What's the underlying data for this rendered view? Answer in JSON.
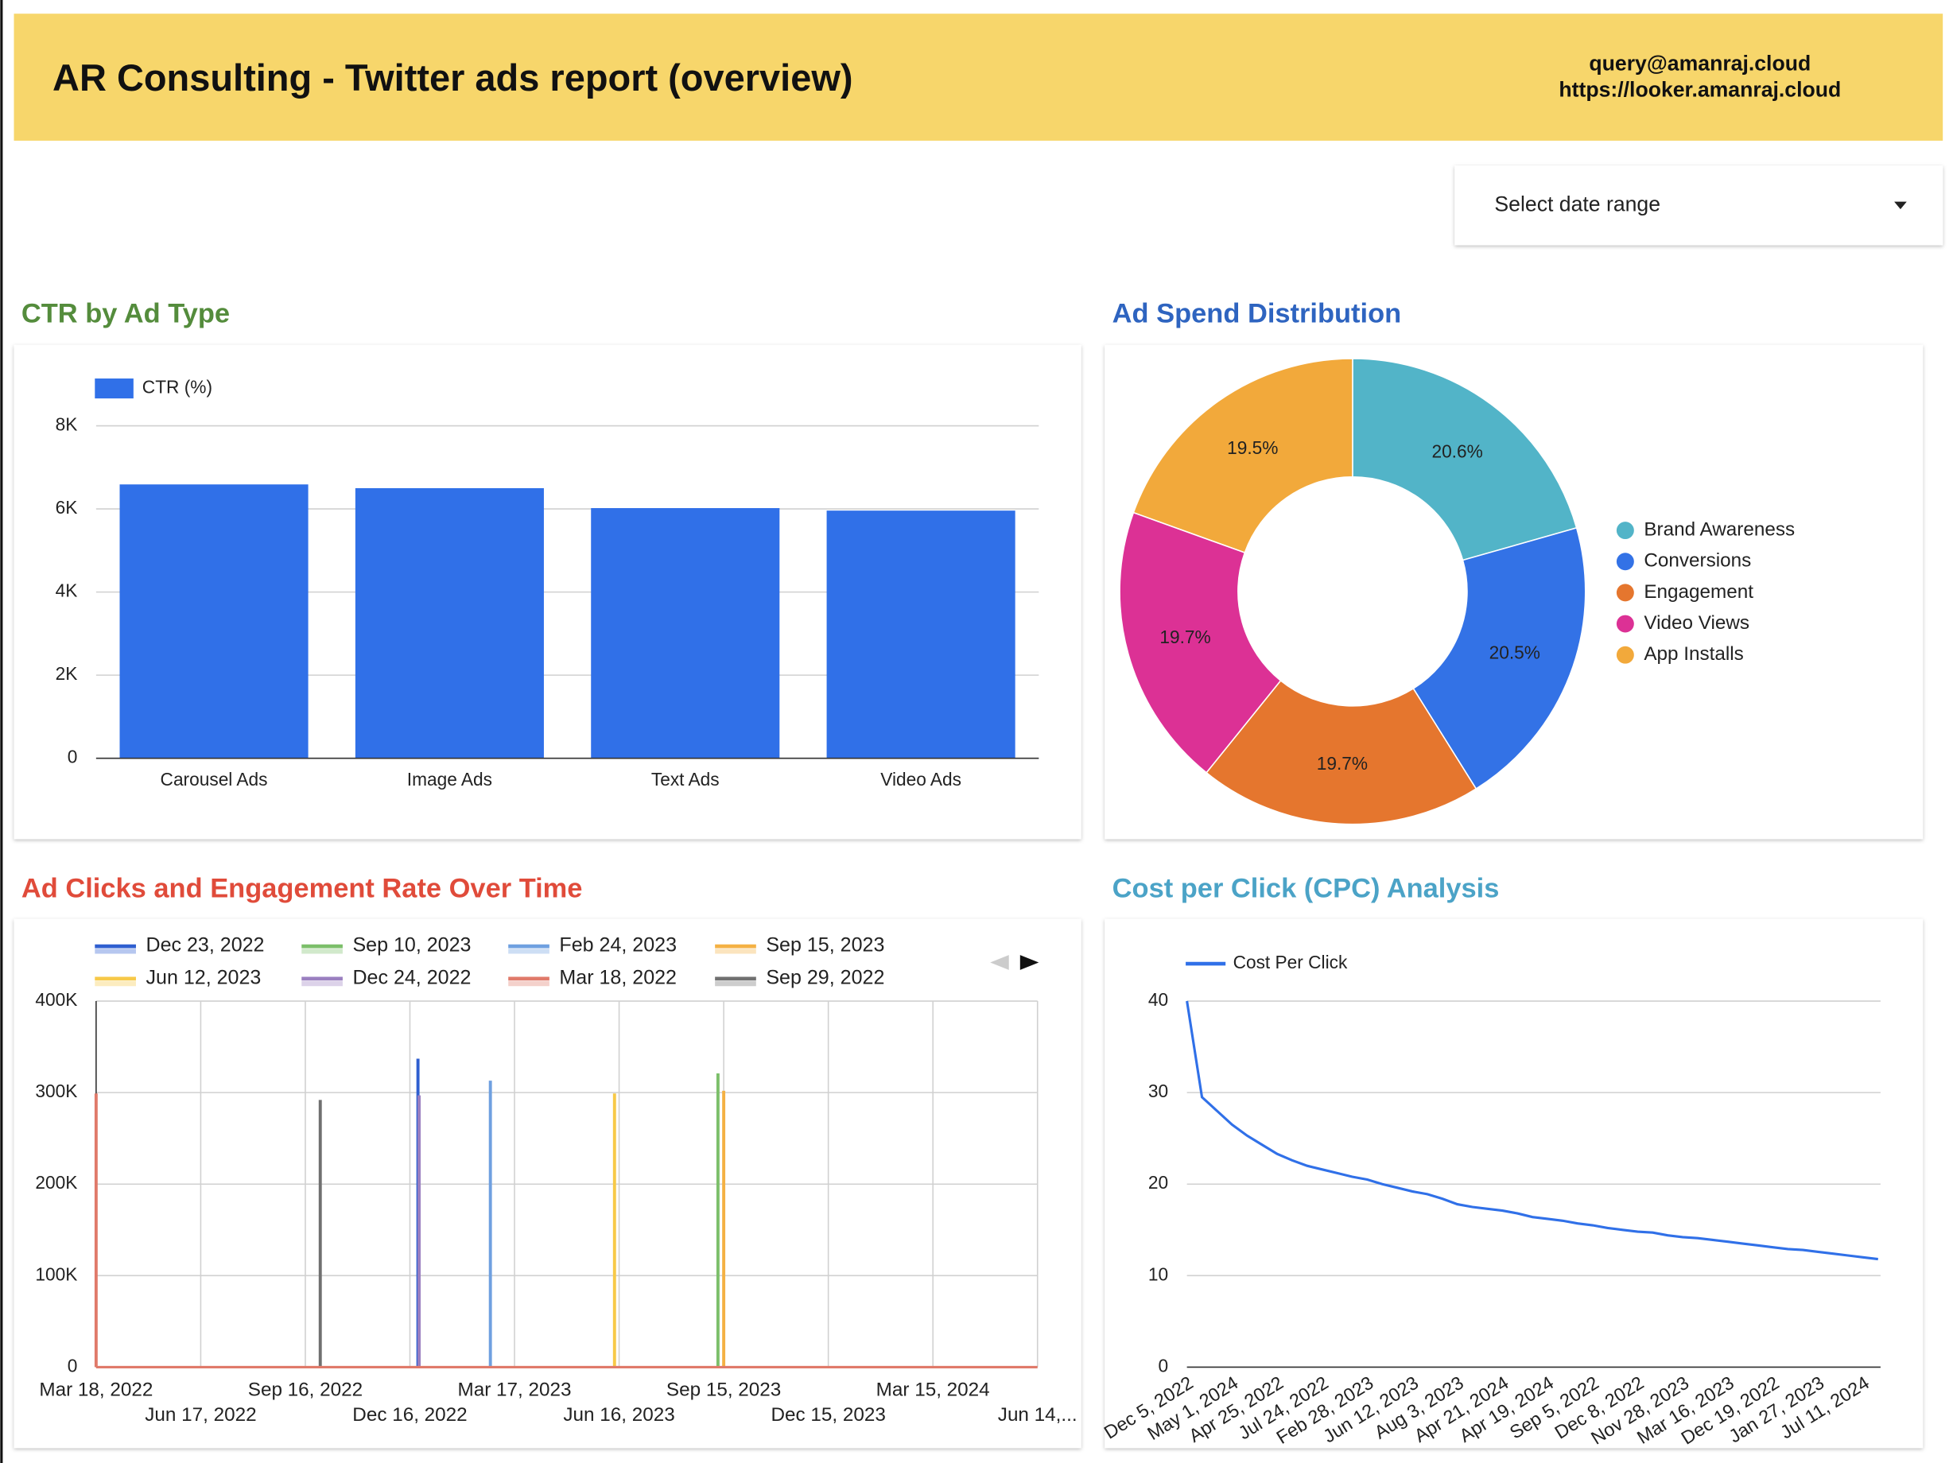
{
  "header": {
    "title": "AR Consulting - Twitter ads report (overview)",
    "contact_email": "query@amanraj.cloud",
    "contact_url": "https://looker.amanraj.cloud"
  },
  "date_control": {
    "label": "Select date range"
  },
  "chart_data": [
    {
      "type": "bar",
      "title": "CTR by Ad Type",
      "title_color": "#548c3c",
      "categories": [
        "Carousel Ads",
        "Image Ads",
        "Text Ads",
        "Video Ads"
      ],
      "series": [
        {
          "name": "CTR (%)",
          "color": "#3070e8",
          "values": [
            6590,
            6500,
            6020,
            5960
          ]
        }
      ],
      "ylim": [
        0,
        8000
      ],
      "yticks": [
        0,
        {
          "value": 2000,
          "label": "2K"
        },
        {
          "value": 4000,
          "label": "4K"
        },
        {
          "value": 6000,
          "label": "6K"
        },
        {
          "value": 8000,
          "label": "8K"
        }
      ],
      "grid": true
    },
    {
      "type": "pie",
      "title": "Ad Spend Distribution",
      "title_color": "#2e64c0",
      "categories": [
        "Brand Awareness",
        "Conversions",
        "Engagement",
        "Video Views",
        "App Installs"
      ],
      "values": [
        20.6,
        20.5,
        19.7,
        19.7,
        19.5
      ],
      "value_labels": [
        "20.6%",
        "20.5%",
        "19.7%",
        "19.7%",
        "19.5%"
      ],
      "colors": [
        "#52b4c8",
        "#3372e6",
        "#e5762e",
        "#dc3195",
        "#f2a93b"
      ],
      "donut": true
    },
    {
      "type": "line",
      "title": "Ad Clicks and Engagement Rate Over Time",
      "title_color": "#e04b3a",
      "series": [
        {
          "name": "Dec 23, 2022",
          "color": "#2f5fd0",
          "x": [
            "Dec 23, 2022"
          ],
          "values": [
            337000
          ]
        },
        {
          "name": "Sep 10, 2023",
          "color": "#7cbf6a",
          "x": [
            "Sep 10, 2023"
          ],
          "values": [
            321000
          ]
        },
        {
          "name": "Feb 24, 2023",
          "color": "#6fa0e0",
          "x": [
            "Feb 24, 2023"
          ],
          "values": [
            313000
          ]
        },
        {
          "name": "Sep 15, 2023",
          "color": "#f4b144",
          "x": [
            "Sep 15, 2023"
          ],
          "values": [
            302000
          ]
        },
        {
          "name": "Jun 12, 2023",
          "color": "#f7c948",
          "x": [
            "Jun 12, 2023"
          ],
          "values": [
            299000
          ]
        },
        {
          "name": "Dec 24, 2022",
          "color": "#9a7fc0",
          "x": [
            "Dec 24, 2022"
          ],
          "values": [
            297000
          ]
        },
        {
          "name": "Mar 18, 2022",
          "color": "#e07a6a",
          "x": [
            "Mar 18, 2022"
          ],
          "values": [
            299000
          ]
        },
        {
          "name": "Sep 29, 2022",
          "color": "#707070",
          "x": [
            "Sep 29, 2022"
          ],
          "values": [
            292000
          ]
        }
      ],
      "xlim": [
        "Mar 18, 2022",
        "Jun 14, 2024"
      ],
      "xticks": [
        "Mar 18, 2022",
        "Jun 17, 2022",
        "Sep 16, 2022",
        "Dec 16, 2022",
        "Mar 17, 2023",
        "Jun 16, 2023",
        "Sep 15, 2023",
        "Dec 15, 2023",
        "Mar 15, 2024",
        {
          "value": "Jun 14, 2024",
          "label": "Jun 14,..."
        }
      ],
      "ylim": [
        0,
        400000
      ],
      "yticks": [
        0,
        {
          "value": 100000,
          "label": "100K"
        },
        {
          "value": 200000,
          "label": "200K"
        },
        {
          "value": 300000,
          "label": "300K"
        },
        {
          "value": 400000,
          "label": "400K"
        }
      ],
      "grid": true
    },
    {
      "type": "line",
      "title": "Cost per Click (CPC) Analysis",
      "title_color": "#4ba3c7",
      "categories": [
        "Dec 5, 2022",
        null,
        null,
        "May 1, 2024",
        null,
        null,
        "Apr 25, 2022",
        null,
        null,
        "Jul 24, 2022",
        null,
        null,
        "Feb 28, 2023",
        null,
        null,
        "Jun 12, 2023",
        null,
        null,
        "Aug 3, 2023",
        null,
        null,
        "Apr 21, 2024",
        null,
        null,
        "Apr 19, 2024",
        null,
        null,
        "Sep 5, 2022",
        null,
        null,
        "Dec 8, 2022",
        null,
        null,
        "Nov 28, 2023",
        null,
        null,
        "Mar 16, 2023",
        null,
        null,
        "Dec 19, 2022",
        null,
        null,
        "Jan 27, 2023",
        null,
        null,
        "Jul 11, 2024",
        null
      ],
      "series": [
        {
          "name": "Cost Per Click",
          "color": "#3070e8",
          "values": [
            40,
            29.5,
            28,
            26.5,
            25.3,
            24.3,
            23.3,
            22.6,
            22,
            21.6,
            21.2,
            20.8,
            20.5,
            20,
            19.6,
            19.2,
            18.9,
            18.4,
            17.8,
            17.5,
            17.3,
            17.1,
            16.8,
            16.4,
            16.2,
            16,
            15.7,
            15.5,
            15.2,
            15,
            14.8,
            14.7,
            14.4,
            14.2,
            14.1,
            13.9,
            13.7,
            13.5,
            13.3,
            13.1,
            12.9,
            12.8,
            12.6,
            12.4,
            12.2,
            12,
            11.8
          ]
        }
      ],
      "ylim": [
        0,
        40
      ],
      "yticks": [
        0,
        10,
        20,
        30,
        40
      ],
      "grid": true
    }
  ]
}
